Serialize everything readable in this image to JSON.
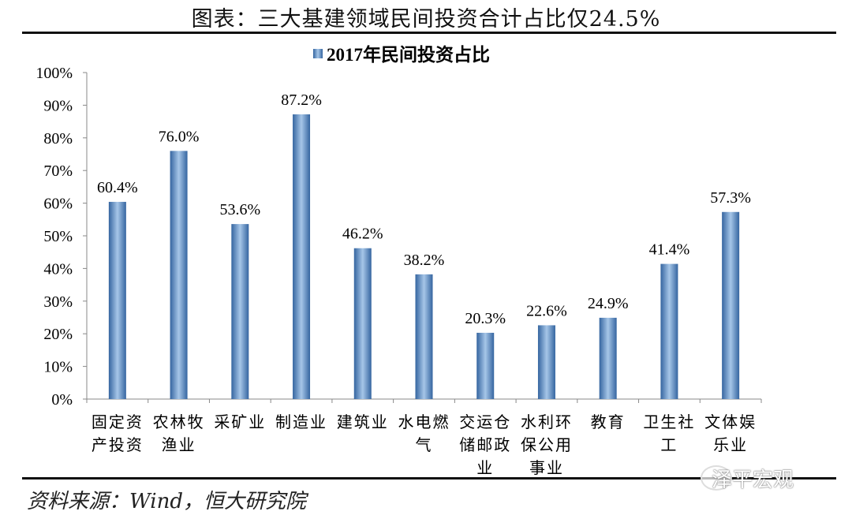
{
  "title": "图表：三大基建领域民间投资合计占比仅24.5%",
  "source": "资料来源：Wind，恒大研究院",
  "watermark": "泽平宏观",
  "chart_data": {
    "type": "bar",
    "title": "",
    "legend": {
      "position": "top",
      "entries": [
        "2017年民间投资占比"
      ]
    },
    "series": [
      {
        "name": "2017年民间投资占比",
        "values": [
          60.4,
          76.0,
          53.6,
          87.2,
          46.2,
          38.2,
          20.3,
          22.6,
          24.9,
          41.4,
          57.3
        ],
        "color": "#4a7fb8"
      }
    ],
    "categories": [
      [
        "固定资",
        "产投资"
      ],
      [
        "农林牧",
        "渔业"
      ],
      [
        "采矿业"
      ],
      [
        "制造业"
      ],
      [
        "建筑业"
      ],
      [
        "水电燃",
        "气"
      ],
      [
        "交运仓",
        "储邮政",
        "业"
      ],
      [
        "水利环",
        "保公用",
        "事业"
      ],
      [
        "教育"
      ],
      [
        "卫生社",
        "工"
      ],
      [
        "文体娱",
        "乐业"
      ]
    ],
    "data_labels": [
      "60.4%",
      "76.0%",
      "53.6%",
      "87.2%",
      "46.2%",
      "38.2%",
      "20.3%",
      "22.6%",
      "24.9%",
      "41.4%",
      "57.3%"
    ],
    "yticks": [
      "0%",
      "10%",
      "20%",
      "30%",
      "40%",
      "50%",
      "60%",
      "70%",
      "80%",
      "90%",
      "100%"
    ],
    "ylim": [
      0,
      100
    ],
    "grid": false
  }
}
